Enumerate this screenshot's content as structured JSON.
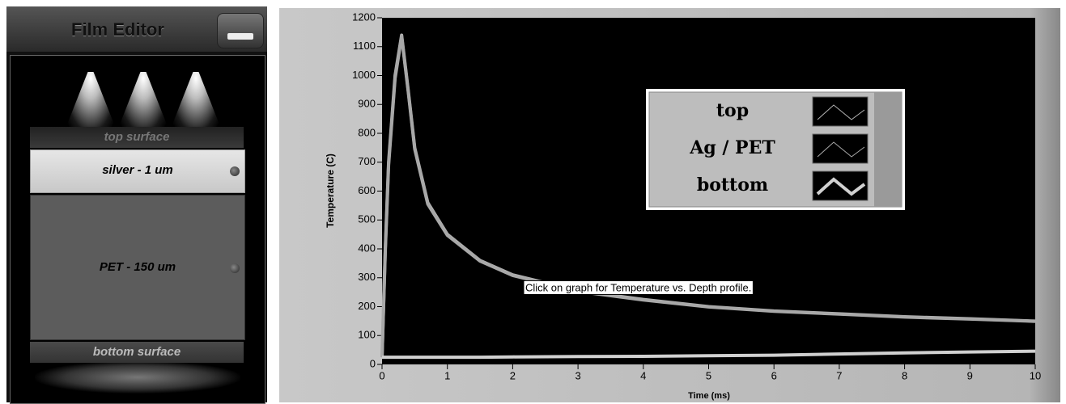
{
  "film_editor": {
    "title": "Film Editor",
    "layers": [
      "top surface",
      "silver - 1 um",
      "PET - 150 um",
      "bottom surface"
    ]
  },
  "chart_data": {
    "type": "line",
    "xlabel": "Time (ms)",
    "ylabel": "Temperature (C)",
    "annotation": "Click on graph for Temperature vs. Depth profile.",
    "x": [
      0,
      0.05,
      0.1,
      0.2,
      0.3,
      0.4,
      0.5,
      0.7,
      1,
      1.5,
      2,
      3,
      4,
      5,
      6,
      7,
      8,
      9,
      10
    ],
    "series": [
      {
        "name": "top",
        "color": "#b4b4b4",
        "values": [
          25,
          400,
          700,
          1000,
          1140,
          950,
          750,
          560,
          450,
          360,
          310,
          255,
          225,
          200,
          185,
          175,
          165,
          158,
          150
        ]
      },
      {
        "name": "Ag / PET",
        "color": "#a8a8a8",
        "values": [
          25,
          390,
          690,
          990,
          1135,
          945,
          745,
          555,
          447,
          358,
          308,
          253,
          223,
          199,
          184,
          174,
          164,
          157,
          149
        ]
      },
      {
        "name": "bottom",
        "color": "#d0d0d0",
        "values": [
          25,
          25,
          25,
          25,
          25,
          25,
          25,
          25,
          25,
          25,
          26,
          27,
          28,
          30,
          32,
          36,
          40,
          43,
          46
        ]
      }
    ],
    "xlim": [
      0,
      10
    ],
    "xticks": [
      0,
      1,
      2,
      3,
      4,
      5,
      6,
      7,
      8,
      9,
      10
    ],
    "ylim": [
      0,
      1200
    ],
    "yticks": [
      0,
      100,
      200,
      300,
      400,
      500,
      600,
      700,
      800,
      900,
      1000,
      1100,
      1200
    ]
  }
}
